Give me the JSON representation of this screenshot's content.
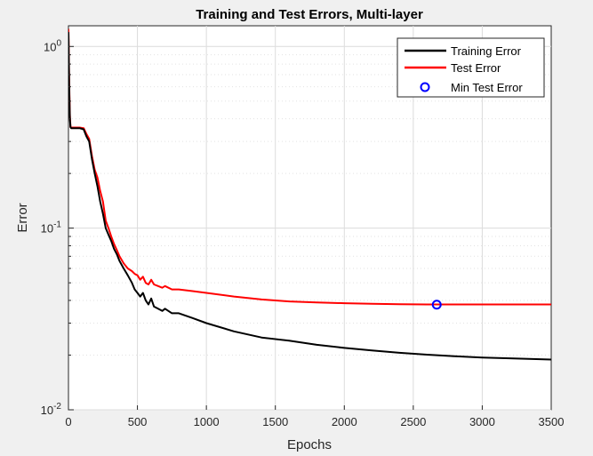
{
  "chart_data": {
    "type": "line",
    "title": "Training and Test Errors, Multi-layer",
    "xlabel": "Epochs",
    "ylabel": "Error",
    "xlim": [
      0,
      3500
    ],
    "ylim": [
      0.01,
      1.3
    ],
    "yscale": "log",
    "grid": true,
    "minor_grid": true,
    "legend_position": "top-right",
    "x_ticks": [
      0,
      500,
      1000,
      1500,
      2000,
      2500,
      3000,
      3500
    ],
    "x_tick_labels": [
      "0",
      "500",
      "1000",
      "1500",
      "2000",
      "2500",
      "3000",
      "3500"
    ],
    "y_ticks": [
      0.01,
      0.1,
      1
    ],
    "y_tick_labels": [
      {
        "base": "10",
        "exp": "-2"
      },
      {
        "base": "10",
        "exp": "-1"
      },
      {
        "base": "10",
        "exp": "0"
      }
    ],
    "series": [
      {
        "name": "Training Error",
        "color": "#000000",
        "x": [
          0,
          5,
          10,
          15,
          20,
          40,
          80,
          110,
          130,
          150,
          170,
          190,
          210,
          230,
          250,
          270,
          290,
          310,
          330,
          350,
          370,
          400,
          430,
          460,
          480,
          500,
          520,
          540,
          560,
          580,
          600,
          620,
          650,
          680,
          700,
          750,
          800,
          900,
          1000,
          1200,
          1400,
          1600,
          1800,
          2000,
          2200,
          2400,
          2600,
          2800,
          3000,
          3200,
          3500
        ],
        "y": [
          1.2,
          0.6,
          0.4,
          0.36,
          0.355,
          0.355,
          0.355,
          0.35,
          0.32,
          0.3,
          0.24,
          0.2,
          0.17,
          0.14,
          0.12,
          0.1,
          0.092,
          0.085,
          0.077,
          0.072,
          0.066,
          0.06,
          0.055,
          0.05,
          0.046,
          0.044,
          0.042,
          0.044,
          0.04,
          0.038,
          0.041,
          0.037,
          0.036,
          0.035,
          0.036,
          0.034,
          0.034,
          0.032,
          0.03,
          0.027,
          0.025,
          0.024,
          0.0228,
          0.0219,
          0.0212,
          0.0206,
          0.0201,
          0.0197,
          0.0194,
          0.0192,
          0.0189
        ]
      },
      {
        "name": "Test Error",
        "color": "#ff0000",
        "x": [
          0,
          5,
          10,
          15,
          20,
          40,
          80,
          110,
          130,
          150,
          170,
          190,
          210,
          230,
          250,
          270,
          290,
          310,
          330,
          350,
          370,
          400,
          430,
          460,
          480,
          500,
          520,
          540,
          560,
          580,
          600,
          620,
          650,
          680,
          700,
          750,
          800,
          900,
          1000,
          1200,
          1400,
          1600,
          1800,
          2000,
          2200,
          2400,
          2600,
          2800,
          3000,
          3200,
          3500
        ],
        "y": [
          1.25,
          0.65,
          0.42,
          0.36,
          0.358,
          0.358,
          0.358,
          0.355,
          0.33,
          0.31,
          0.25,
          0.21,
          0.19,
          0.16,
          0.14,
          0.11,
          0.1,
          0.09,
          0.082,
          0.076,
          0.07,
          0.064,
          0.06,
          0.058,
          0.056,
          0.055,
          0.052,
          0.054,
          0.05,
          0.049,
          0.052,
          0.049,
          0.048,
          0.047,
          0.048,
          0.046,
          0.046,
          0.045,
          0.044,
          0.042,
          0.0405,
          0.0395,
          0.039,
          0.0386,
          0.0383,
          0.0381,
          0.038,
          0.038,
          0.038,
          0.038,
          0.038
        ]
      },
      {
        "name": "Min Test Error",
        "color": "#0000ff",
        "marker": "circle",
        "x": [
          2670
        ],
        "y": [
          0.0379
        ]
      }
    ]
  }
}
